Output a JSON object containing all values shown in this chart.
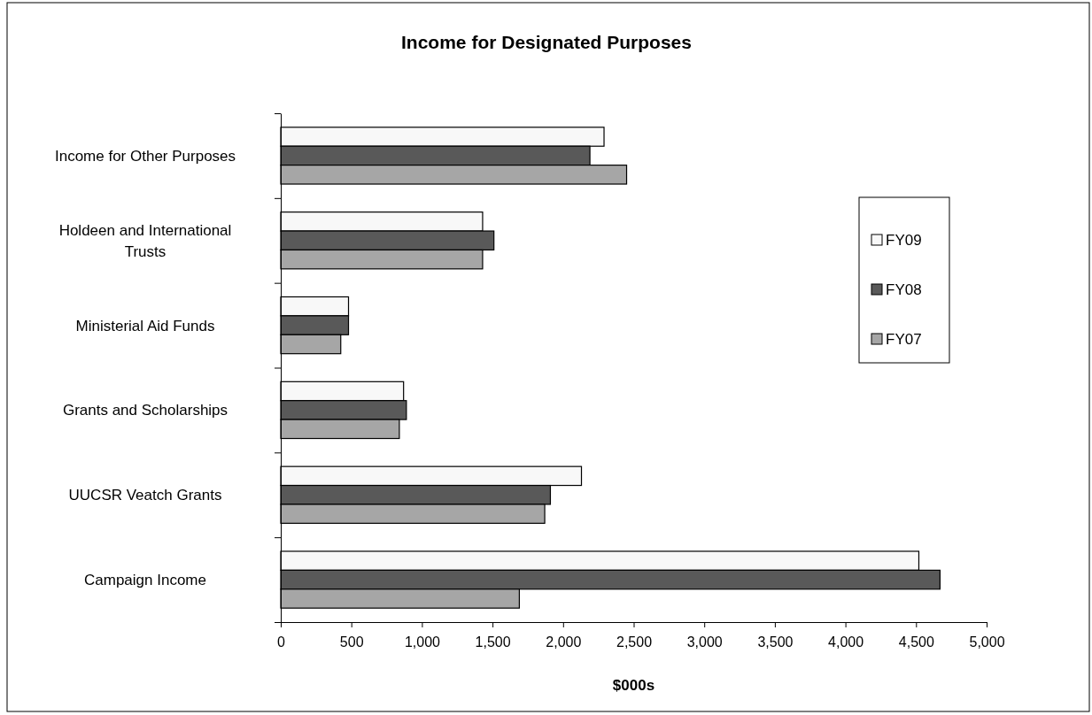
{
  "chart_data": {
    "type": "bar",
    "orientation": "horizontal",
    "title": "Income for Designated Purposes",
    "xlabel": "$000s",
    "categories": [
      "Income for Other Purposes",
      "Holdeen and International Trusts",
      "Ministerial Aid Funds",
      "Grants and Scholarships",
      "UUCSR Veatch Grants",
      "Campaign Income"
    ],
    "series": [
      {
        "name": "FY09",
        "color": "#f8f8f8",
        "values": [
          2290,
          1430,
          480,
          870,
          2130,
          4520
        ]
      },
      {
        "name": "FY08",
        "color": "#595959",
        "values": [
          2190,
          1510,
          480,
          890,
          1910,
          4670
        ]
      },
      {
        "name": "FY07",
        "color": "#a6a6a6",
        "values": [
          2450,
          1430,
          425,
          840,
          1870,
          1690
        ]
      }
    ],
    "xlim": [
      0,
      5000
    ],
    "xticks": [
      0,
      {
        "value": 500,
        "label": "500"
      },
      {
        "value": 1000,
        "label": "1,000"
      },
      {
        "value": 1500,
        "label": "1,500"
      },
      {
        "value": 2000,
        "label": "2,000"
      },
      {
        "value": 2500,
        "label": "2,500"
      },
      {
        "value": 3000,
        "label": "3,000"
      },
      {
        "value": 3500,
        "label": "3,500"
      },
      {
        "value": 4000,
        "label": "4,000"
      },
      {
        "value": 4500,
        "label": "4,500"
      },
      {
        "value": 5000,
        "label": "5,000"
      }
    ],
    "grid": false,
    "legend": "right"
  }
}
